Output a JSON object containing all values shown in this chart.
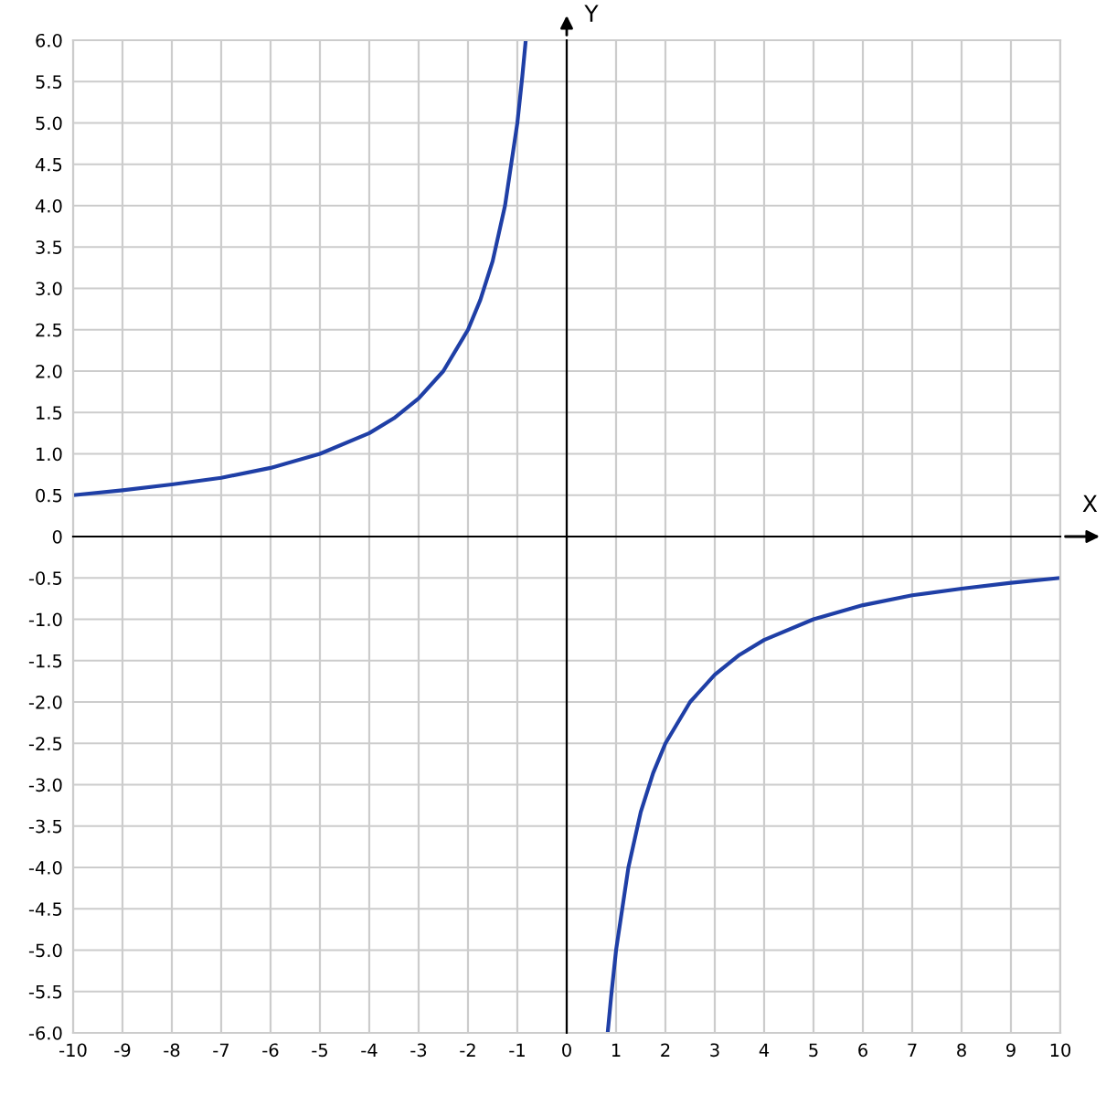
{
  "chart_data": {
    "type": "line",
    "xlabel": "X",
    "ylabel": "Y",
    "series": [
      {
        "color": "#1f3fa6",
        "x": [
          -10,
          -9,
          -8,
          -7,
          -6,
          -5,
          -4,
          -3.5,
          -3,
          -2.5,
          -2,
          -1.75,
          -1.5,
          -1.25,
          -1,
          -0.9,
          -0.83
        ],
        "values": [
          0.5,
          0.56,
          0.63,
          0.71,
          0.83,
          1.0,
          1.25,
          1.43,
          1.67,
          2.0,
          2.5,
          2.86,
          3.33,
          4.0,
          5.0,
          5.56,
          6.0
        ]
      },
      {
        "color": "#1f3fa6",
        "x": [
          0.83,
          0.9,
          1,
          1.25,
          1.5,
          1.75,
          2,
          2.5,
          3,
          3.5,
          4,
          5,
          6,
          7,
          8,
          9,
          10
        ],
        "values": [
          -6.0,
          -5.56,
          -5.0,
          -4.0,
          -3.33,
          -2.86,
          -2.5,
          -2.0,
          -1.67,
          -1.43,
          -1.25,
          -1.0,
          -0.83,
          -0.71,
          -0.63,
          -0.56,
          -0.5
        ]
      }
    ],
    "xlim": [
      -10,
      10
    ],
    "ylim": [
      -6,
      6
    ],
    "xticks": [
      -10,
      -9,
      -8,
      -7,
      -6,
      -5,
      -4,
      -3,
      -2,
      -1,
      0,
      1,
      2,
      3,
      4,
      5,
      6,
      7,
      8,
      9,
      10
    ],
    "yticks": [
      {
        "value": -6,
        "label": "-6.0"
      },
      {
        "value": -5.5,
        "label": "-5.5"
      },
      {
        "value": -5,
        "label": "-5.0"
      },
      {
        "value": -4.5,
        "label": "-4.5"
      },
      {
        "value": -4,
        "label": "-4.0"
      },
      {
        "value": -3.5,
        "label": "-3.5"
      },
      {
        "value": -3,
        "label": "-3.0"
      },
      {
        "value": -2.5,
        "label": "-2.5"
      },
      {
        "value": -2,
        "label": "-2.0"
      },
      {
        "value": -1.5,
        "label": "-1.5"
      },
      {
        "value": -1,
        "label": "-1.0"
      },
      {
        "value": -0.5,
        "label": "-0.5"
      },
      0,
      {
        "value": 0.5,
        "label": "0.5"
      },
      {
        "value": 1,
        "label": "1.0"
      },
      {
        "value": 1.5,
        "label": "1.5"
      },
      {
        "value": 2,
        "label": "2.0"
      },
      {
        "value": 2.5,
        "label": "2.5"
      },
      {
        "value": 3,
        "label": "3.0"
      },
      {
        "value": 3.5,
        "label": "3.5"
      },
      {
        "value": 4,
        "label": "4.0"
      },
      {
        "value": 4.5,
        "label": "4.5"
      },
      {
        "value": 5,
        "label": "5.0"
      },
      {
        "value": 5.5,
        "label": "5.5"
      },
      {
        "value": 6,
        "label": "6.0"
      }
    ],
    "grid": true,
    "line_style": "solid"
  }
}
